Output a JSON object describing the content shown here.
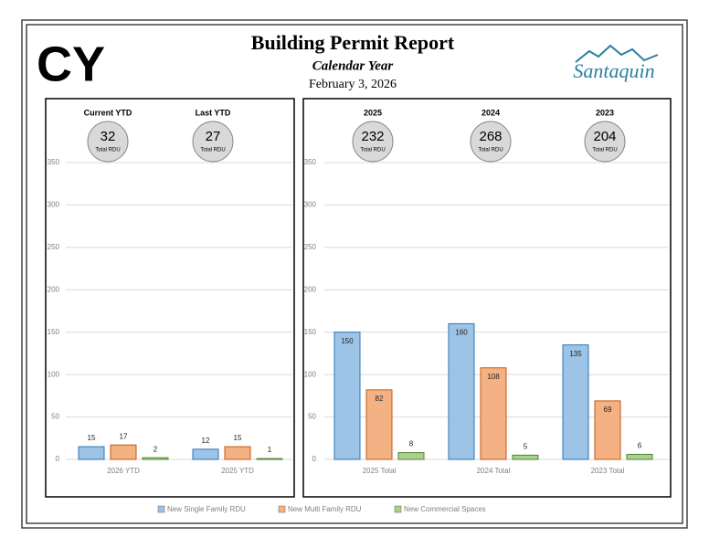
{
  "header": {
    "badge": "CY",
    "title": "Building Permit Report",
    "subtitle": "Calendar Year",
    "date": "February 3, 2026",
    "logo": "Santaquin"
  },
  "chart_data": [
    {
      "type": "bar",
      "categories": [
        "2026 YTD",
        "2025 YTD"
      ],
      "series": [
        {
          "name": "New Single Family RDU",
          "color": "#9dc3e6",
          "values": [
            15,
            12
          ]
        },
        {
          "name": "New Multi Family RDU",
          "color": "#f4b183",
          "values": [
            17,
            15
          ]
        },
        {
          "name": "New Commercial Spaces",
          "color": "#a9d18e",
          "values": [
            2,
            1
          ]
        }
      ],
      "ylim": [
        0,
        350
      ],
      "yticks": [
        0,
        50,
        100,
        150,
        200,
        250,
        300,
        350
      ],
      "grid": true,
      "summaries": [
        {
          "label": "Current YTD",
          "value": 32,
          "unit": "Total RDU"
        },
        {
          "label": "Last YTD",
          "value": 27,
          "unit": "Total RDU"
        }
      ]
    },
    {
      "type": "bar",
      "categories": [
        "2025 Total",
        "2024 Total",
        "2023 Total"
      ],
      "series": [
        {
          "name": "New Single Family RDU",
          "color": "#9dc3e6",
          "values": [
            150,
            160,
            135
          ]
        },
        {
          "name": "New Multi Family RDU",
          "color": "#f4b183",
          "values": [
            82,
            108,
            69
          ]
        },
        {
          "name": "New Commercial Spaces",
          "color": "#a9d18e",
          "values": [
            8,
            5,
            6
          ]
        }
      ],
      "ylim": [
        0,
        350
      ],
      "yticks": [
        0,
        50,
        100,
        150,
        200,
        250,
        300,
        350
      ],
      "grid": true,
      "summaries": [
        {
          "label": "2025",
          "value": 232,
          "unit": "Total RDU"
        },
        {
          "label": "2024",
          "value": 268,
          "unit": "Total RDU"
        },
        {
          "label": "2023",
          "value": 204,
          "unit": "Total RDU"
        }
      ]
    }
  ]
}
